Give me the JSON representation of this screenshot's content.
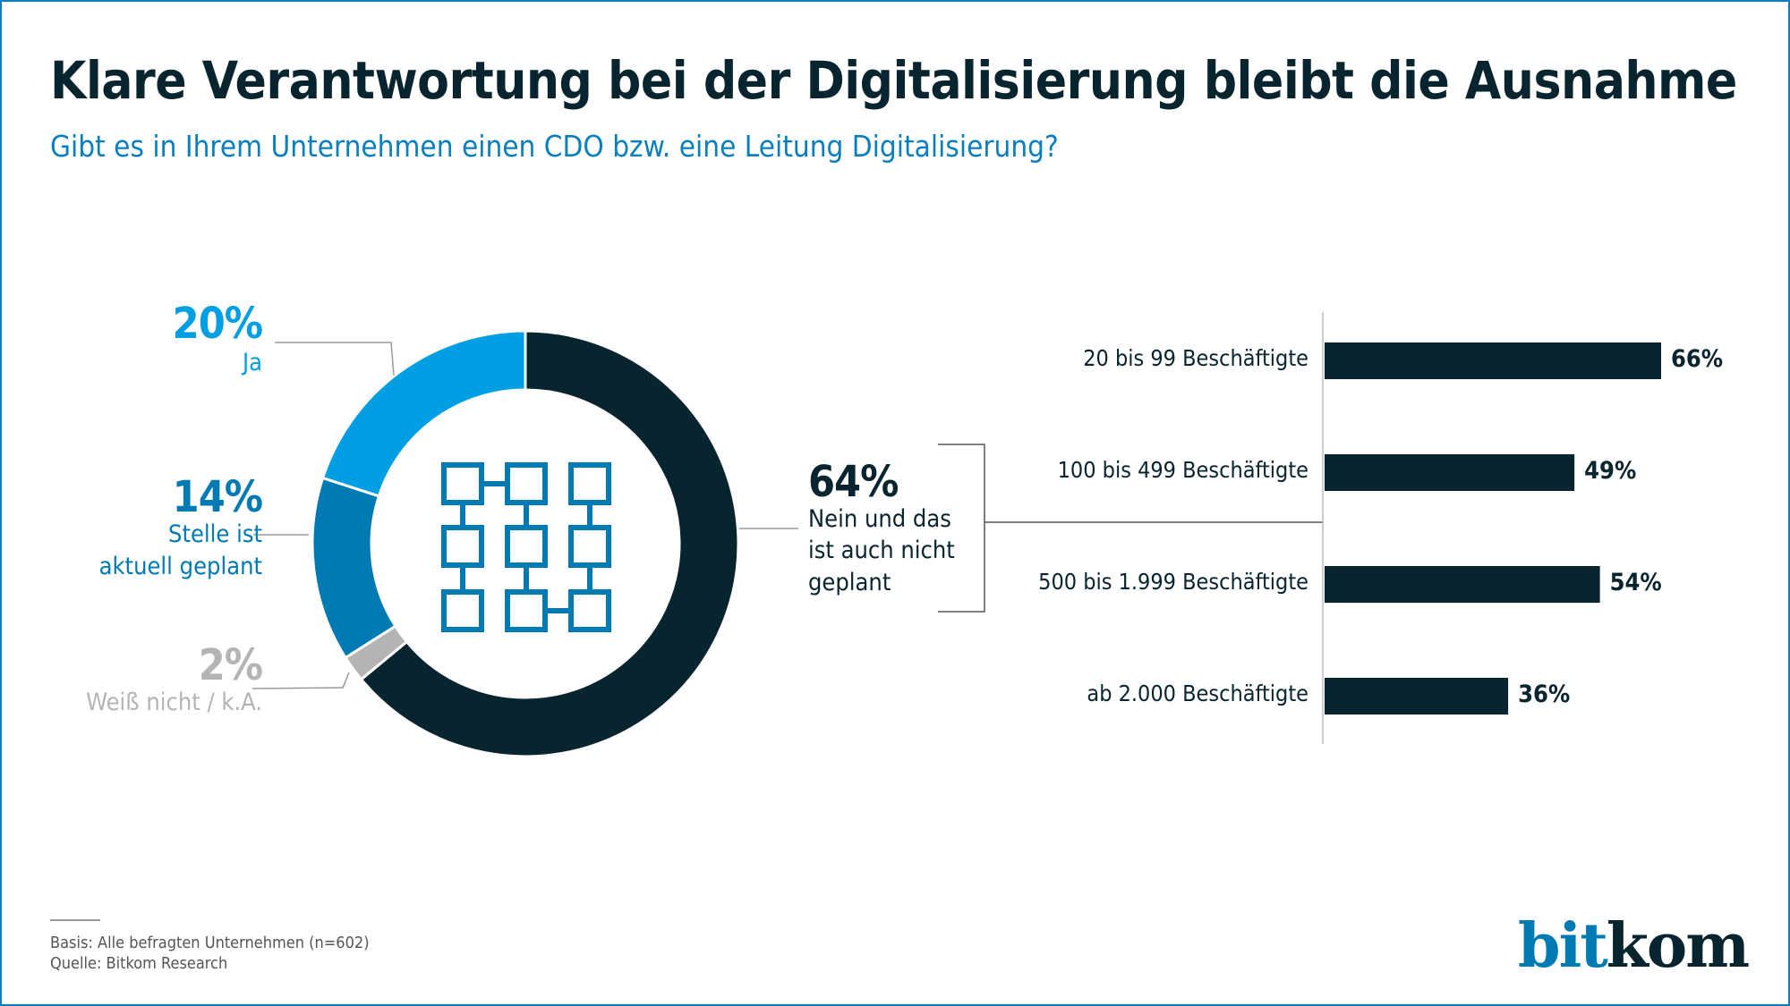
{
  "title": "Klare Verantwortung bei der Digitalisierung bleibt die Ausnahme",
  "subtitle": "Gibt es in Ihrem Unternehmen einen CDO bzw. eine Leitung Digitalisierung?",
  "colors": {
    "dark": "#08252f",
    "light_blue": "#009fe3",
    "mid_blue": "#007ab3",
    "gray": "#b4b4b4"
  },
  "chart_data": [
    {
      "type": "pie",
      "variant": "donut",
      "center_icon": "network-grid-icon",
      "slices": [
        {
          "label": "Nein und das ist auch nicht geplant",
          "value": 64,
          "display": "64%",
          "color": "#08252f"
        },
        {
          "label": "Weiß nicht / k.A.",
          "value": 2,
          "display": "2%",
          "color": "#b4b4b4"
        },
        {
          "label": "Stelle ist aktuell geplant",
          "value": 14,
          "display": "14%",
          "color": "#007ab3"
        },
        {
          "label": "Ja",
          "value": 20,
          "display": "20%",
          "color": "#009fe3"
        }
      ],
      "labels": {
        "ja_pct": "20%",
        "ja": "Ja",
        "geplant_pct": "14%",
        "geplant_1": "Stelle ist",
        "geplant_2": "aktuell geplant",
        "wn_pct": "2%",
        "wn": "Weiß nicht / k.A.",
        "nein_pct": "64%",
        "nein_1": "Nein und das",
        "nein_2": "ist auch nicht",
        "nein_3": "geplant"
      }
    },
    {
      "type": "bar",
      "orientation": "horizontal",
      "breakdown_of": "Nein und das ist auch nicht geplant",
      "categories": [
        "20 bis 99 Beschäftigte",
        "100 bis 499 Beschäftigte",
        "500 bis 1.999 Beschäftigte",
        "ab 2.000 Beschäftigte"
      ],
      "values": [
        66,
        49,
        54,
        36
      ],
      "labels": [
        "66%",
        "49%",
        "54%",
        "36%"
      ],
      "color": "#08252f"
    }
  ],
  "footer": {
    "basis": "Basis: Alle befragten Unternehmen (n=602)",
    "quelle": "Quelle: Bitkom Research"
  },
  "logo": {
    "part1": "bit",
    "part2": "kom"
  }
}
